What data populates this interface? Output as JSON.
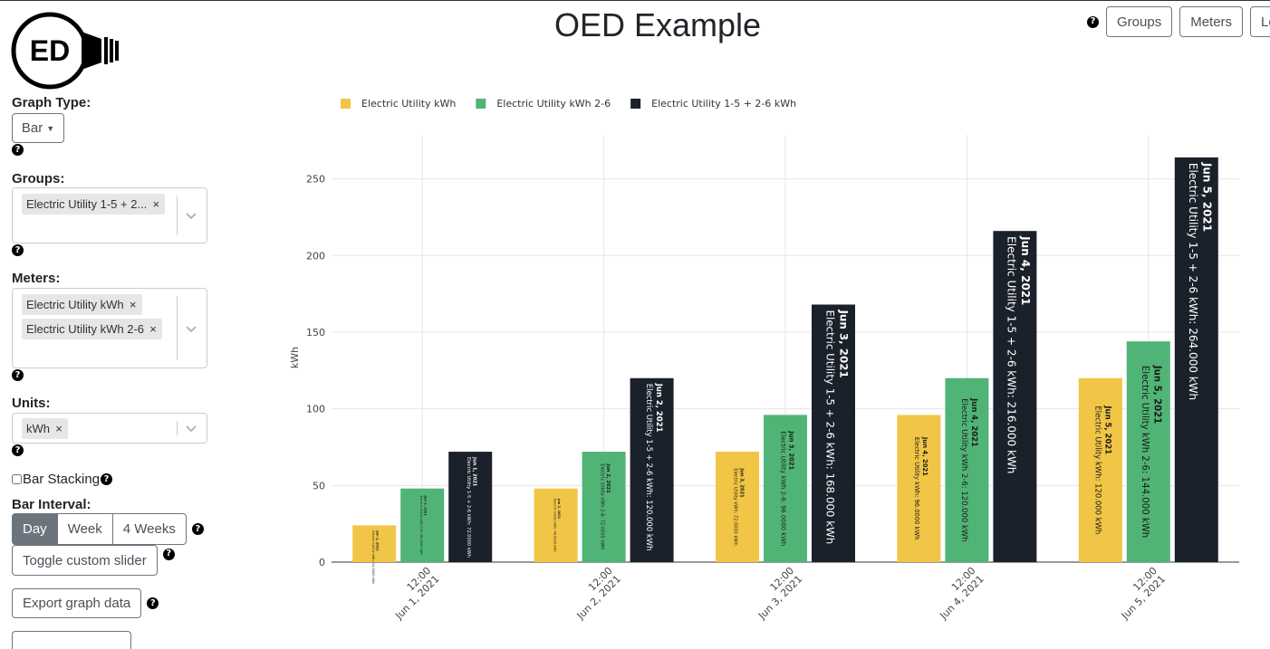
{
  "header": {
    "title": "OED Example",
    "logo_text": "ED",
    "nav": {
      "groups": "Groups",
      "meters": "Meters",
      "log_in": "Log"
    }
  },
  "sidebar": {
    "graph_type": {
      "label": "Graph Type:",
      "value": "Bar"
    },
    "groups": {
      "label": "Groups:",
      "selected": [
        "Electric Utility 1-5 + 2..."
      ]
    },
    "meters": {
      "label": "Meters:",
      "selected": [
        "Electric Utility kWh",
        "Electric Utility kWh 2-6"
      ]
    },
    "units": {
      "label": "Units:",
      "selected": [
        "kWh"
      ]
    },
    "bar_stacking": {
      "label": "Bar Stacking",
      "checked": false
    },
    "bar_interval": {
      "label": "Bar Interval:",
      "options": [
        "Day",
        "Week",
        "4 Weeks"
      ],
      "active": "Day"
    },
    "toggle_slider": "Toggle custom slider",
    "export": "Export graph data"
  },
  "chart_data": {
    "type": "bar",
    "ylabel": "kWh",
    "ylim": [
      0,
      280
    ],
    "y_ticks": [
      0,
      50,
      100,
      150,
      200,
      250
    ],
    "categories": [
      "Jun 1, 2021",
      "Jun 2, 2021",
      "Jun 3, 2021",
      "Jun 4, 2021",
      "Jun 5, 2021"
    ],
    "x_tick_time": "12:00",
    "legend_position": "top-left",
    "series": [
      {
        "name": "Electric Utility kWh",
        "color": "#f1c545",
        "values": [
          24,
          48,
          72,
          96,
          120
        ],
        "labels": [
          "Electric Utility kWh: 24.0000 kWh",
          "Electric Utility kWh: 48.0000 kWh",
          "Electric Utility kWh: 72.0000 kWh",
          "Electric Utility kWh: 96.0000 kWh",
          "Electric Utility kWh: 120.000 kWh"
        ]
      },
      {
        "name": "Electric Utility kWh 2-6",
        "color": "#51b477",
        "values": [
          48,
          72,
          96,
          120,
          144
        ],
        "labels": [
          "Electric Utility kWh 2-6: 48.0000 kWh",
          "Electric Utility kWh 2-6: 72.0000 kWh",
          "Electric Utility kWh 2-6: 96.0000 kWh",
          "Electric Utility kWh 2-6: 120.000 kWh",
          "Electric Utility kWh 2-6: 144.000 kWh"
        ]
      },
      {
        "name": "Electric Utility 1-5 + 2-6 kWh",
        "color": "#1b212b",
        "values": [
          72,
          120,
          168,
          216,
          264
        ],
        "labels": [
          "Electric Utility 1-5 + 2-6 kWh: 72.0000 kWh",
          "Electric Utility 1-5 + 2-6 kWh: 120.000 kWh",
          "Electric Utility 1-5 + 2-6 kWh: 168.000 kWh",
          "Electric Utility 1-5 + 2-6 kWh: 216.000 kWh",
          "Electric Utility 1-5 + 2-6 kWh: 264.000 kWh"
        ]
      }
    ]
  }
}
